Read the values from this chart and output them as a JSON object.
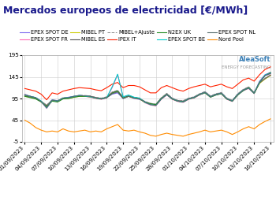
{
  "title": "Mercados europeos de electricidad [€/MWh]",
  "ylim": [
    -5,
    195
  ],
  "yticks": [
    -5,
    45,
    95,
    145,
    195
  ],
  "background_color": "#ffffff",
  "dates": [
    "01/09/2023",
    "02/09/2023",
    "03/09/2023",
    "04/09/2023",
    "05/09/2023",
    "06/09/2023",
    "07/09/2023",
    "08/09/2023",
    "09/09/2023",
    "10/09/2023",
    "11/09/2023",
    "12/09/2023",
    "13/09/2023",
    "14/09/2023",
    "15/09/2023",
    "16/09/2023",
    "17/09/2023",
    "18/09/2023",
    "19/09/2023",
    "20/09/2023",
    "21/09/2023",
    "22/09/2023",
    "23/09/2023",
    "24/09/2023",
    "25/09/2023",
    "26/09/2023",
    "27/09/2023",
    "28/09/2023",
    "29/09/2023",
    "30/09/2023",
    "01/10/2023",
    "02/10/2023",
    "03/10/2023",
    "04/10/2023",
    "05/10/2023",
    "06/10/2023",
    "07/10/2023",
    "08/10/2023",
    "09/10/2023",
    "10/10/2023",
    "11/10/2023",
    "12/10/2023",
    "13/10/2023",
    "14/10/2023",
    "15/10/2023",
    "16/10/2023"
  ],
  "xtick_labels": [
    "01/09/2023",
    "04/09/2023",
    "07/09/2023",
    "10/09/2023",
    "13/09/2023",
    "16/09/2023",
    "19/09/2023",
    "22/09/2023",
    "25/09/2023",
    "28/09/2023",
    "01/10/2023",
    "04/10/2023",
    "07/10/2023",
    "10/10/2023",
    "13/10/2023",
    "16/10/2023"
  ],
  "xtick_positions": [
    0,
    3,
    6,
    9,
    12,
    15,
    18,
    21,
    24,
    27,
    30,
    33,
    36,
    39,
    42,
    45
  ],
  "series": {
    "EPEX SPOT DE": {
      "color": "#7b68ee",
      "linewidth": 0.8,
      "linestyle": "-",
      "values": [
        103,
        100,
        97,
        88,
        75,
        92,
        90,
        95,
        98,
        100,
        102,
        101,
        100,
        96,
        95,
        97,
        105,
        108,
        95,
        100,
        95,
        93,
        88,
        82,
        80,
        95,
        105,
        95,
        90,
        88,
        95,
        98,
        105,
        110,
        100,
        105,
        108,
        95,
        90,
        105,
        115,
        120,
        108,
        135,
        150,
        155
      ]
    },
    "EPEX SPOT FR": {
      "color": "#ff69b4",
      "linewidth": 0.8,
      "linestyle": "-",
      "values": [
        105,
        100,
        95,
        88,
        72,
        90,
        88,
        95,
        96,
        99,
        101,
        100,
        98,
        95,
        93,
        96,
        120,
        150,
        98,
        102,
        97,
        95,
        85,
        80,
        78,
        93,
        103,
        93,
        88,
        86,
        93,
        96,
        103,
        108,
        98,
        103,
        106,
        93,
        88,
        103,
        113,
        118,
        106,
        132,
        148,
        152
      ]
    },
    "MIBEL PT": {
      "color": "#cccc00",
      "linewidth": 0.8,
      "linestyle": "-",
      "values": [
        100,
        98,
        95,
        88,
        78,
        90,
        88,
        95,
        95,
        98,
        100,
        100,
        99,
        96,
        94,
        97,
        108,
        112,
        96,
        100,
        96,
        94,
        86,
        82,
        80,
        95,
        105,
        94,
        89,
        88,
        94,
        97,
        104,
        109,
        99,
        104,
        107,
        94,
        89,
        104,
        114,
        120,
        107,
        130,
        140,
        148
      ]
    },
    "MIBEL ES": {
      "color": "#555555",
      "linewidth": 0.8,
      "linestyle": "-",
      "values": [
        101,
        99,
        96,
        88,
        79,
        91,
        89,
        96,
        96,
        99,
        101,
        101,
        100,
        97,
        95,
        98,
        109,
        113,
        97,
        101,
        97,
        95,
        87,
        83,
        81,
        96,
        106,
        95,
        90,
        89,
        95,
        98,
        105,
        110,
        100,
        105,
        108,
        95,
        90,
        105,
        115,
        121,
        108,
        131,
        141,
        149
      ]
    },
    "MIBEL+Ajuste": {
      "color": "#888888",
      "linewidth": 0.7,
      "linestyle": "--",
      "values": [
        102,
        100,
        97,
        89,
        80,
        92,
        90,
        97,
        97,
        100,
        102,
        102,
        101,
        98,
        96,
        99,
        110,
        114,
        98,
        102,
        98,
        96,
        88,
        84,
        82,
        97,
        107,
        96,
        91,
        90,
        96,
        99,
        106,
        111,
        101,
        106,
        109,
        96,
        91,
        106,
        116,
        122,
        109,
        132,
        142,
        150
      ]
    },
    "IPEX IT": {
      "color": "#ff2200",
      "linewidth": 0.8,
      "linestyle": "-",
      "values": [
        118,
        115,
        112,
        105,
        92,
        108,
        105,
        112,
        115,
        118,
        120,
        119,
        118,
        115,
        113,
        120,
        128,
        132,
        120,
        125,
        125,
        122,
        115,
        108,
        108,
        120,
        125,
        120,
        115,
        112,
        118,
        122,
        125,
        128,
        122,
        125,
        128,
        122,
        118,
        128,
        138,
        142,
        135,
        150,
        162,
        168
      ]
    },
    "N2EX UK": {
      "color": "#228b22",
      "linewidth": 0.8,
      "linestyle": "-",
      "values": [
        100,
        97,
        94,
        87,
        76,
        89,
        87,
        94,
        95,
        98,
        100,
        100,
        99,
        96,
        94,
        97,
        107,
        112,
        96,
        100,
        97,
        95,
        87,
        83,
        81,
        95,
        104,
        94,
        89,
        87,
        94,
        97,
        104,
        108,
        98,
        103,
        106,
        94,
        89,
        103,
        113,
        120,
        107,
        132,
        148,
        155
      ]
    },
    "EPEX SPOT BE": {
      "color": "#00cccc",
      "linewidth": 0.8,
      "linestyle": "-",
      "values": [
        104,
        100,
        97,
        89,
        73,
        91,
        89,
        96,
        97,
        100,
        102,
        101,
        99,
        96,
        94,
        97,
        122,
        151,
        99,
        103,
        98,
        96,
        86,
        81,
        79,
        94,
        104,
        94,
        89,
        87,
        94,
        97,
        104,
        109,
        99,
        104,
        107,
        94,
        89,
        104,
        114,
        119,
        107,
        133,
        149,
        153
      ]
    },
    "EPEX SPOT NL": {
      "color": "#556b6b",
      "linewidth": 0.8,
      "linestyle": "-",
      "values": [
        103,
        100,
        97,
        88,
        74,
        91,
        89,
        96,
        97,
        100,
        102,
        101,
        100,
        96,
        94,
        97,
        106,
        110,
        95,
        100,
        96,
        94,
        87,
        81,
        79,
        94,
        104,
        94,
        89,
        87,
        94,
        97,
        104,
        109,
        99,
        104,
        107,
        94,
        89,
        104,
        114,
        119,
        107,
        133,
        148,
        153
      ]
    },
    "Nord Pool": {
      "color": "#ff8c00",
      "linewidth": 0.8,
      "linestyle": "-",
      "values": [
        45,
        38,
        28,
        22,
        18,
        20,
        18,
        25,
        20,
        18,
        20,
        22,
        18,
        20,
        18,
        25,
        30,
        35,
        22,
        20,
        22,
        18,
        15,
        10,
        8,
        12,
        15,
        12,
        10,
        8,
        12,
        15,
        18,
        22,
        18,
        20,
        22,
        18,
        12,
        18,
        25,
        30,
        25,
        35,
        42,
        48
      ]
    }
  },
  "watermark_text": "AleaSoft",
  "watermark_sub": "ENERGY FORECASTING",
  "title_fontsize": 9,
  "tick_fontsize": 5.2,
  "legend_fontsize": 4.8
}
